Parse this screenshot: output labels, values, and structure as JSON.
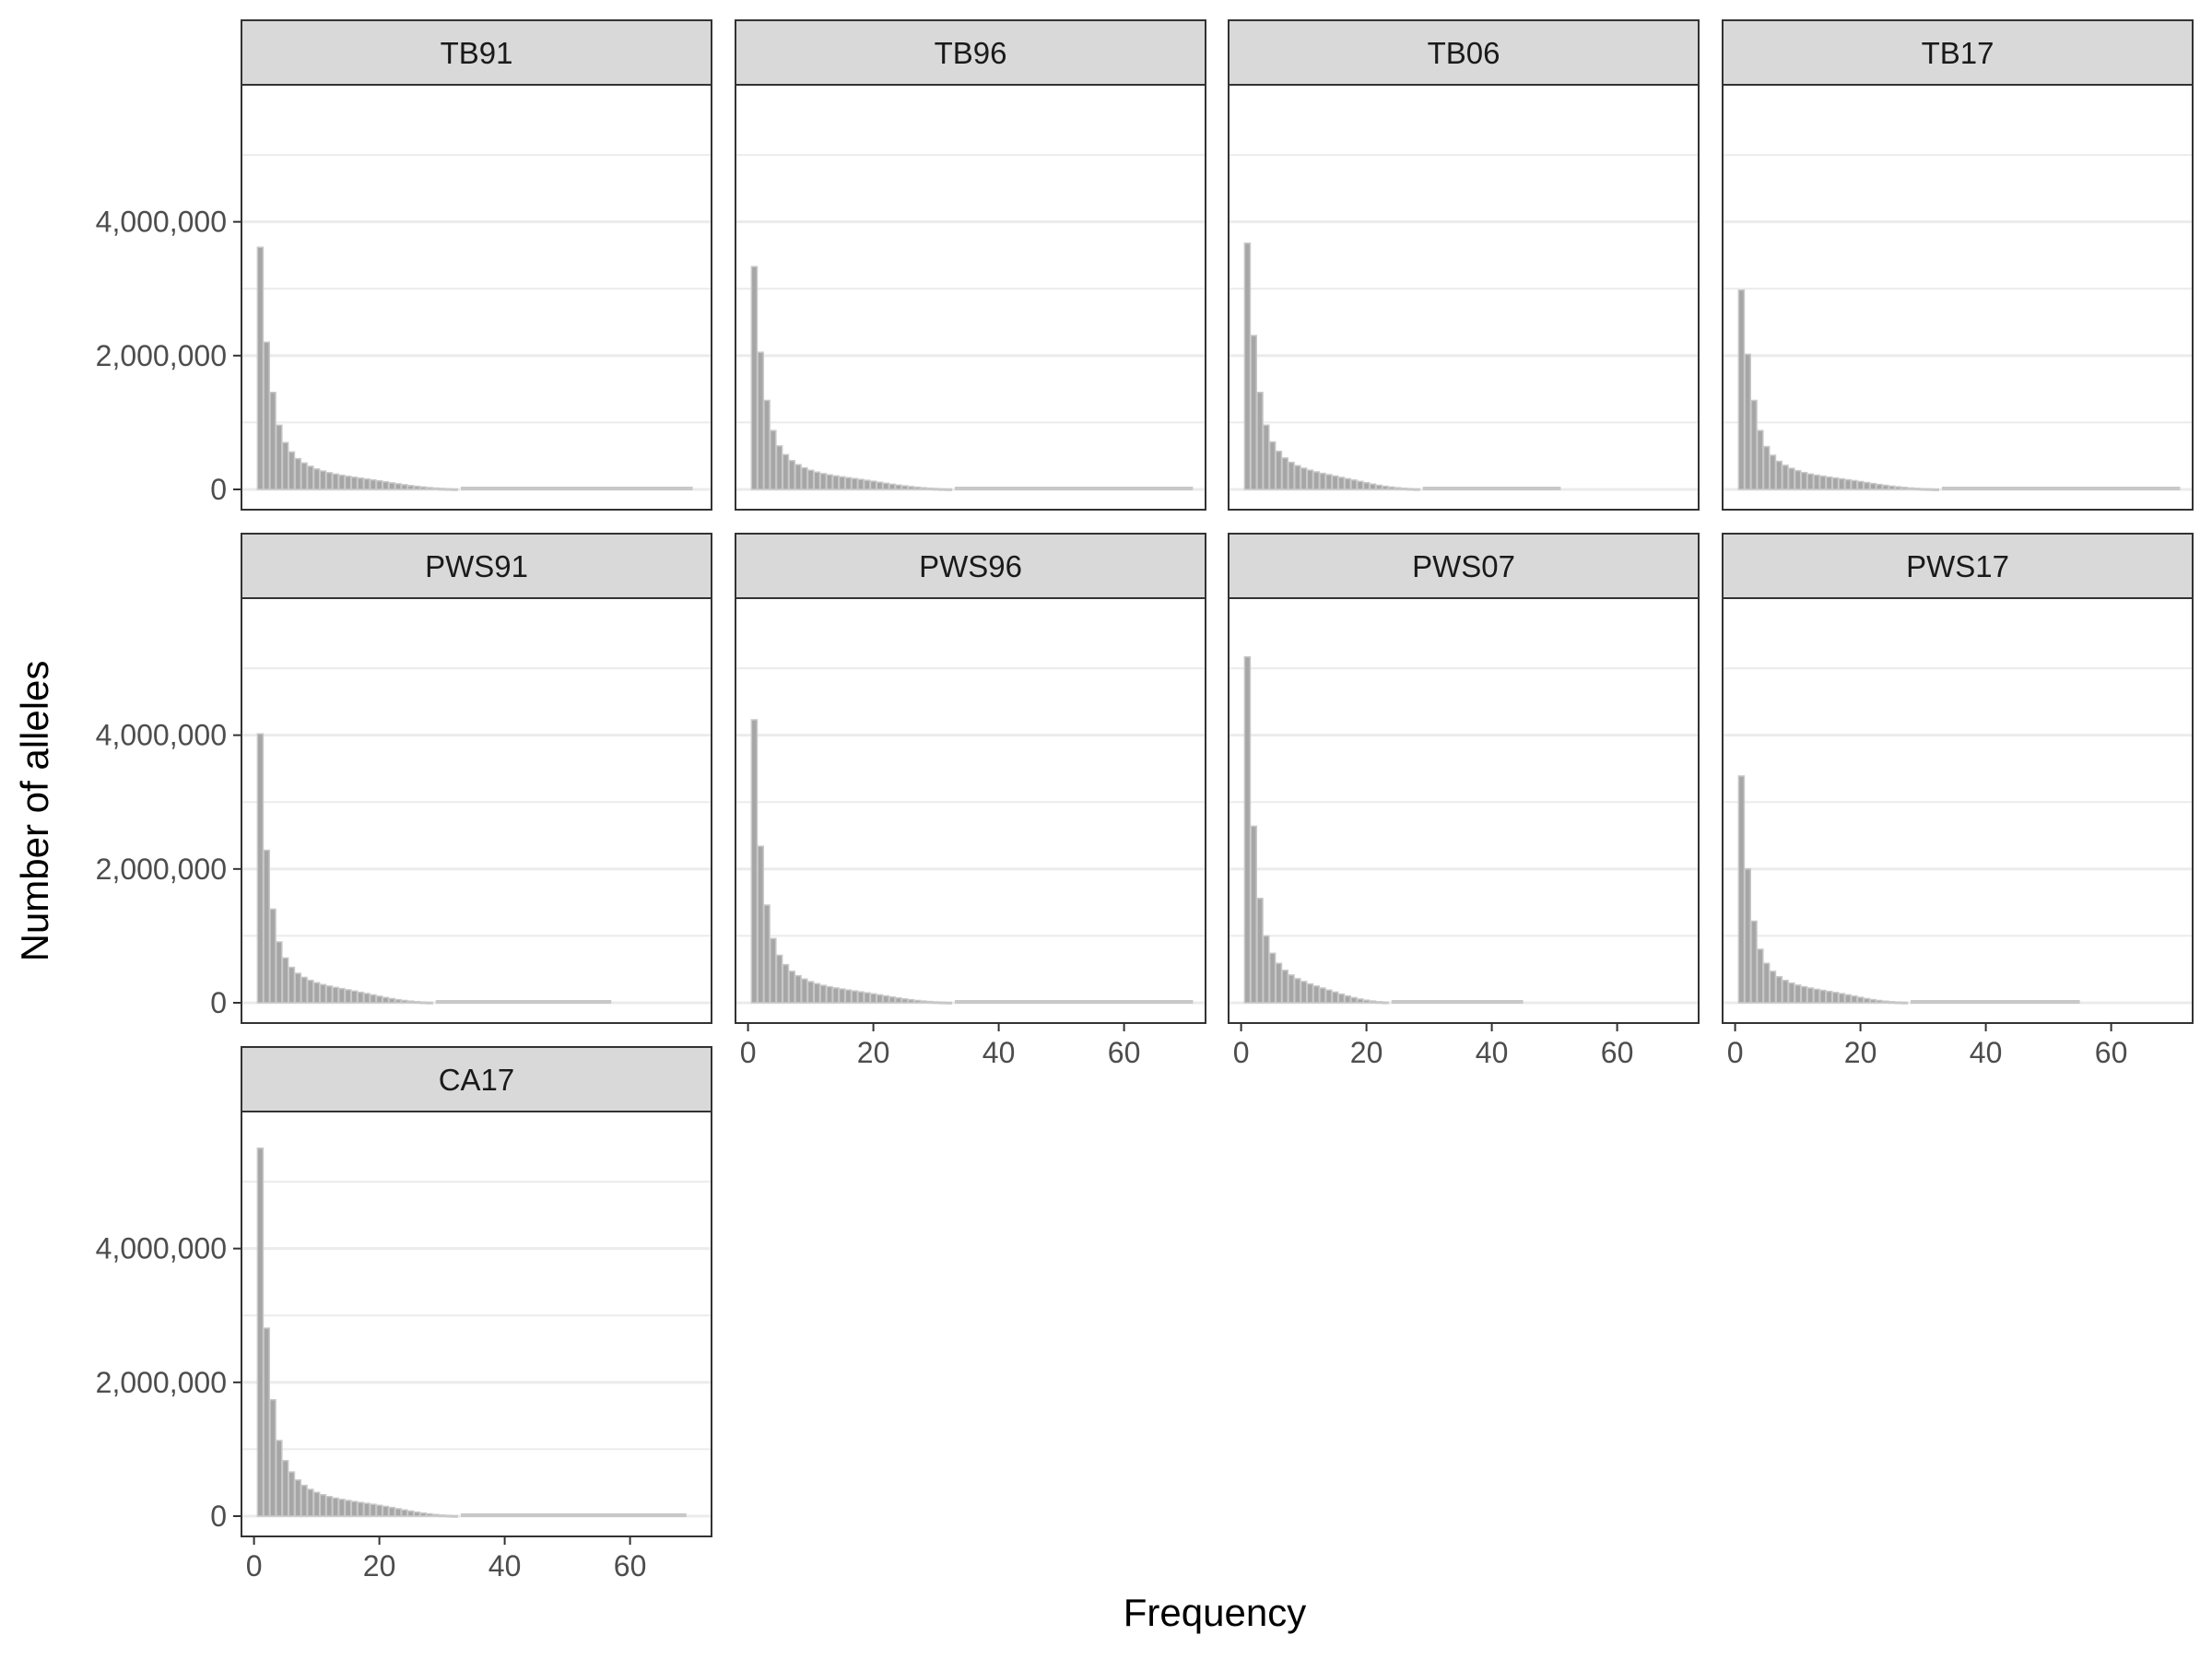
{
  "chart_data": {
    "type": "bar",
    "xlabel": "Frequency",
    "ylabel": "Number of alleles",
    "xlim": [
      -2,
      73
    ],
    "ylim": [
      0,
      5800000
    ],
    "x_ticks": [
      "0",
      "20",
      "40",
      "60"
    ],
    "x_tick_values": [
      0,
      20,
      40,
      60
    ],
    "y_ticks": [
      "0",
      "2,000,000",
      "4,000,000"
    ],
    "y_tick_values": [
      0,
      2000000,
      4000000
    ],
    "grid": true,
    "legend": "none",
    "colors": {
      "bar_fill": "#a6a6a6",
      "bar_outline": "#c8c8c8",
      "strip_fill": "#d9d9d9",
      "panel_border": "#333333",
      "grid": "#ebebeb"
    },
    "panels": [
      {
        "name": "TB91",
        "maxX": 70,
        "values": [
          3620000,
          2200000,
          1450000,
          960000,
          700000,
          560000,
          460000,
          395000,
          345000,
          305000,
          275000,
          250000,
          230000,
          212000,
          196000,
          182000,
          168000,
          155000,
          142000,
          128000,
          113000,
          98000,
          84000,
          70000,
          57000,
          46000,
          36000,
          27000,
          20000,
          14000,
          10000,
          7000
        ]
      },
      {
        "name": "TB96",
        "maxX": 71,
        "values": [
          3330000,
          2050000,
          1330000,
          880000,
          650000,
          520000,
          430000,
          370000,
          322000,
          286000,
          258000,
          236000,
          218000,
          202000,
          188000,
          175000,
          162000,
          149000,
          136000,
          122000,
          107000,
          92000,
          78000,
          65000,
          53000,
          42000,
          33000,
          25000,
          18000,
          13000,
          9000,
          6000
        ]
      },
      {
        "name": "TB06",
        "maxX": 51,
        "values": [
          3680000,
          2300000,
          1450000,
          960000,
          710000,
          570000,
          470000,
          405000,
          355000,
          317000,
          287000,
          262000,
          240000,
          220000,
          200000,
          180000,
          160000,
          140000,
          120000,
          100000,
          80000,
          62000,
          47000,
          35000,
          25000,
          17000,
          12000,
          8000
        ]
      },
      {
        "name": "TB17",
        "maxX": 71,
        "values": [
          2980000,
          2020000,
          1330000,
          880000,
          640000,
          510000,
          420000,
          360000,
          315000,
          280000,
          252000,
          230000,
          213000,
          198000,
          184000,
          171000,
          158000,
          145000,
          132000,
          118000,
          103000,
          88000,
          74000,
          61000,
          49000,
          39000,
          30000,
          22000,
          16000,
          11000,
          8000,
          5000
        ]
      },
      {
        "name": "PWS91",
        "maxX": 57,
        "values": [
          4020000,
          2280000,
          1400000,
          910000,
          670000,
          530000,
          440000,
          380000,
          335000,
          300000,
          272000,
          250000,
          230000,
          212000,
          194000,
          176000,
          157000,
          138000,
          118000,
          98000,
          79000,
          62000,
          47000,
          35000,
          25000,
          17000,
          11000,
          7000
        ]
      },
      {
        "name": "PWS96",
        "maxX": 71,
        "values": [
          4230000,
          2340000,
          1460000,
          960000,
          710000,
          570000,
          470000,
          405000,
          355000,
          316000,
          285000,
          260000,
          240000,
          222000,
          206000,
          191000,
          177000,
          163000,
          149000,
          134000,
          119000,
          103000,
          87000,
          72000,
          58000,
          46000,
          35000,
          26000,
          19000,
          13000,
          9000,
          6000
        ]
      },
      {
        "name": "PWS07",
        "maxX": 45,
        "values": [
          5170000,
          2640000,
          1560000,
          1000000,
          740000,
          590000,
          485000,
          415000,
          360000,
          318000,
          282000,
          250000,
          220000,
          190000,
          160000,
          130000,
          102000,
          77000,
          56000,
          39000,
          26000,
          16000,
          10000
        ]
      },
      {
        "name": "PWS17",
        "maxX": 55,
        "values": [
          3390000,
          2000000,
          1220000,
          800000,
          590000,
          470000,
          390000,
          335000,
          295000,
          264000,
          240000,
          220000,
          202000,
          186000,
          170000,
          154000,
          137000,
          119000,
          100000,
          81000,
          63000,
          47000,
          34000,
          24000,
          16000,
          11000,
          7000
        ]
      },
      {
        "name": "CA17",
        "maxX": 69,
        "values": [
          5500000,
          2810000,
          1740000,
          1130000,
          830000,
          660000,
          540000,
          460000,
          400000,
          355000,
          320000,
          292000,
          270000,
          251000,
          234000,
          219000,
          205000,
          191000,
          177000,
          162000,
          146000,
          129000,
          111000,
          93000,
          76000,
          60000,
          46000,
          34000,
          24000,
          16000,
          11000,
          7000
        ]
      }
    ]
  }
}
